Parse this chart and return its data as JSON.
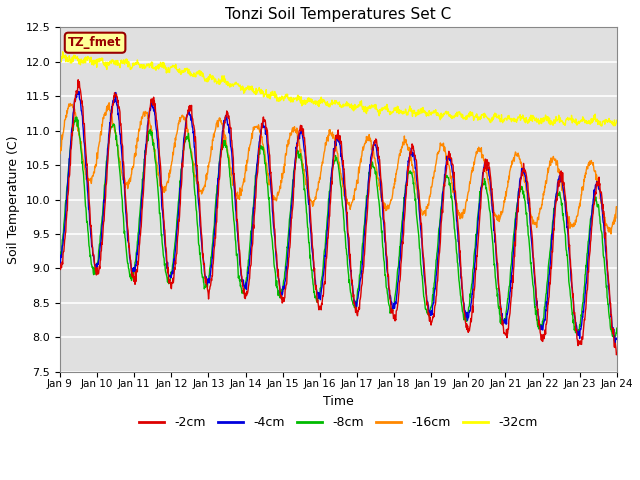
{
  "title": "Tonzi Soil Temperatures Set C",
  "xlabel": "Time",
  "ylabel": "Soil Temperature (C)",
  "ylim": [
    7.5,
    12.5
  ],
  "n_days": 15,
  "x_tick_labels": [
    "Jan 9",
    "Jan 10",
    "Jan 11",
    "Jan 12",
    "Jan 13",
    "Jan 14",
    "Jan 15",
    "Jan 16",
    "Jan 17",
    "Jan 18",
    "Jan 19",
    "Jan 20",
    "Jan 21",
    "Jan 22",
    "Jan 23",
    "Jan 24"
  ],
  "colors": {
    "2cm": "#dd0000",
    "4cm": "#0000dd",
    "8cm": "#00bb00",
    "16cm": "#ff8800",
    "32cm": "#ffff00"
  },
  "legend_labels": [
    "-2cm",
    "-4cm",
    "-8cm",
    "-16cm",
    "-32cm"
  ],
  "bg_color": "#e0e0e0",
  "annotation_text": "TZ_fmet",
  "annotation_bg": "#ffff99",
  "annotation_border": "#990000"
}
